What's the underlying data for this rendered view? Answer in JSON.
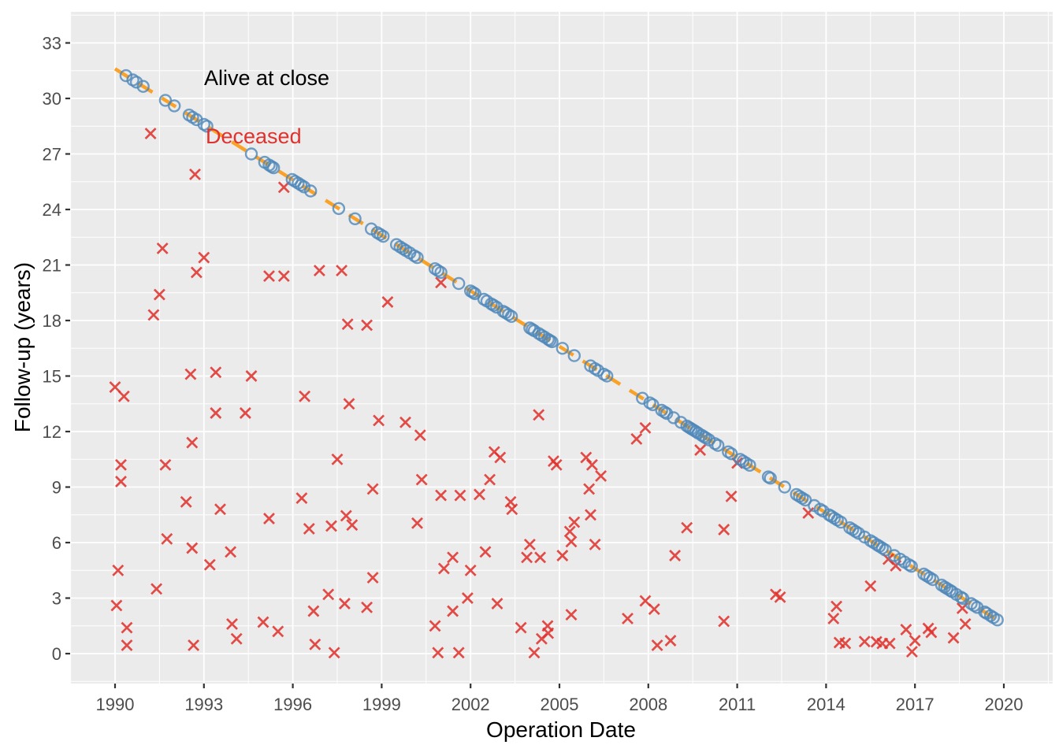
{
  "chart_data": {
    "type": "scatter",
    "title": "",
    "xlabel": "Operation Date",
    "ylabel": "Follow-up (years)",
    "legend_position": "none (in-plot text annotations)",
    "grid": "white major and minor gridlines on gray panel",
    "x_axis": {
      "ticks": [
        1990,
        1993,
        1996,
        1999,
        2002,
        2005,
        2008,
        2011,
        2014,
        2017,
        2020
      ],
      "range": [
        1988.5,
        2021.6
      ]
    },
    "y_axis": {
      "ticks": [
        0,
        3,
        6,
        9,
        12,
        15,
        18,
        21,
        24,
        27,
        30,
        33
      ],
      "range": [
        -1.6,
        34.7
      ]
    },
    "colors": {
      "alive": "#4D87B9",
      "deceased": "#E0312D",
      "trend": "#F9A227",
      "panel_bg": "#EBEBEB",
      "grid": "#FFFFFF",
      "tick_text": "#4D4D4D",
      "axis_title": "#000000"
    },
    "annotations": [
      {
        "text": "Alive at close",
        "color": "#000000",
        "x": 1993.0,
        "y": 31.1
      },
      {
        "text": "Deceased",
        "color": "#E0312D",
        "x": 1993.1,
        "y": 27.9
      }
    ],
    "trend_line": {
      "style": "dashed",
      "color": "#F9A227",
      "x": [
        1990.0,
        2019.85
      ],
      "y": [
        31.6,
        1.75
      ]
    },
    "series": [
      {
        "name": "Alive at close",
        "marker": "open-circle",
        "color": "#4D87B9",
        "points": [
          [
            1990.37,
            31.23
          ],
          [
            1990.6,
            31.0
          ],
          [
            1990.72,
            30.88
          ],
          [
            1990.95,
            30.65
          ],
          [
            1991.7,
            29.9
          ],
          [
            1992.0,
            29.6
          ],
          [
            1992.5,
            29.1
          ],
          [
            1992.62,
            28.98
          ],
          [
            1992.75,
            28.85
          ],
          [
            1993.0,
            28.6
          ],
          [
            1993.1,
            28.5
          ],
          [
            1994.6,
            27.0
          ],
          [
            1995.05,
            26.55
          ],
          [
            1995.2,
            26.4
          ],
          [
            1995.28,
            26.32
          ],
          [
            1995.35,
            26.25
          ],
          [
            1995.98,
            25.62
          ],
          [
            1996.08,
            25.52
          ],
          [
            1996.18,
            25.42
          ],
          [
            1996.28,
            25.32
          ],
          [
            1996.38,
            25.22
          ],
          [
            1996.6,
            25.0
          ],
          [
            1997.55,
            24.05
          ],
          [
            1998.1,
            23.5
          ],
          [
            1998.65,
            22.95
          ],
          [
            1998.85,
            22.75
          ],
          [
            1998.95,
            22.65
          ],
          [
            1999.05,
            22.55
          ],
          [
            1999.5,
            22.1
          ],
          [
            1999.62,
            21.98
          ],
          [
            1999.72,
            21.88
          ],
          [
            1999.82,
            21.78
          ],
          [
            1999.95,
            21.65
          ],
          [
            2000.1,
            21.5
          ],
          [
            2000.2,
            21.4
          ],
          [
            2000.8,
            20.8
          ],
          [
            2000.9,
            20.7
          ],
          [
            2001.0,
            20.6
          ],
          [
            2001.6,
            20.0
          ],
          [
            2002.0,
            19.6
          ],
          [
            2002.08,
            19.52
          ],
          [
            2002.15,
            19.45
          ],
          [
            2002.45,
            19.15
          ],
          [
            2002.55,
            19.05
          ],
          [
            2002.7,
            18.9
          ],
          [
            2002.78,
            18.82
          ],
          [
            2002.88,
            18.72
          ],
          [
            2003.1,
            18.5
          ],
          [
            2003.18,
            18.42
          ],
          [
            2003.28,
            18.32
          ],
          [
            2003.38,
            18.22
          ],
          [
            2004.0,
            17.6
          ],
          [
            2004.08,
            17.52
          ],
          [
            2004.15,
            17.45
          ],
          [
            2004.3,
            17.3
          ],
          [
            2004.4,
            17.2
          ],
          [
            2004.5,
            17.1
          ],
          [
            2004.62,
            16.98
          ],
          [
            2004.68,
            16.92
          ],
          [
            2004.75,
            16.85
          ],
          [
            2005.1,
            16.5
          ],
          [
            2005.5,
            16.1
          ],
          [
            2006.05,
            15.55
          ],
          [
            2006.2,
            15.4
          ],
          [
            2006.3,
            15.3
          ],
          [
            2006.5,
            15.1
          ],
          [
            2006.6,
            15.0
          ],
          [
            2007.8,
            13.8
          ],
          [
            2008.05,
            13.55
          ],
          [
            2008.15,
            13.45
          ],
          [
            2008.45,
            13.15
          ],
          [
            2008.55,
            13.05
          ],
          [
            2008.62,
            12.98
          ],
          [
            2008.85,
            12.75
          ],
          [
            2009.1,
            12.5
          ],
          [
            2009.3,
            12.3
          ],
          [
            2009.38,
            12.22
          ],
          [
            2009.45,
            12.15
          ],
          [
            2009.52,
            12.08
          ],
          [
            2009.6,
            12.0
          ],
          [
            2009.68,
            11.92
          ],
          [
            2009.8,
            11.8
          ],
          [
            2009.88,
            11.72
          ],
          [
            2009.95,
            11.65
          ],
          [
            2010.05,
            11.55
          ],
          [
            2010.25,
            11.35
          ],
          [
            2010.35,
            11.25
          ],
          [
            2010.7,
            10.9
          ],
          [
            2010.8,
            10.8
          ],
          [
            2011.1,
            10.5
          ],
          [
            2011.2,
            10.4
          ],
          [
            2011.3,
            10.3
          ],
          [
            2011.42,
            10.18
          ],
          [
            2012.05,
            9.55
          ],
          [
            2012.12,
            9.48
          ],
          [
            2012.6,
            9.0
          ],
          [
            2013.0,
            8.6
          ],
          [
            2013.1,
            8.5
          ],
          [
            2013.2,
            8.4
          ],
          [
            2013.3,
            8.3
          ],
          [
            2013.6,
            8.0
          ],
          [
            2013.8,
            7.8
          ],
          [
            2013.9,
            7.7
          ],
          [
            2014.1,
            7.5
          ],
          [
            2014.18,
            7.42
          ],
          [
            2014.28,
            7.32
          ],
          [
            2014.38,
            7.22
          ],
          [
            2014.5,
            7.1
          ],
          [
            2014.8,
            6.8
          ],
          [
            2014.9,
            6.7
          ],
          [
            2015.0,
            6.6
          ],
          [
            2015.1,
            6.5
          ],
          [
            2015.3,
            6.3
          ],
          [
            2015.5,
            6.1
          ],
          [
            2015.6,
            6.0
          ],
          [
            2015.72,
            5.88
          ],
          [
            2015.8,
            5.8
          ],
          [
            2015.9,
            5.7
          ],
          [
            2016.0,
            5.6
          ],
          [
            2016.3,
            5.3
          ],
          [
            2016.5,
            5.1
          ],
          [
            2016.65,
            4.95
          ],
          [
            2016.8,
            4.8
          ],
          [
            2016.88,
            4.72
          ],
          [
            2017.3,
            4.3
          ],
          [
            2017.4,
            4.2
          ],
          [
            2017.5,
            4.1
          ],
          [
            2017.6,
            4.0
          ],
          [
            2017.9,
            3.7
          ],
          [
            2018.0,
            3.6
          ],
          [
            2018.08,
            3.52
          ],
          [
            2018.18,
            3.42
          ],
          [
            2018.25,
            3.35
          ],
          [
            2018.4,
            3.2
          ],
          [
            2018.55,
            3.05
          ],
          [
            2018.62,
            2.98
          ],
          [
            2018.9,
            2.7
          ],
          [
            2019.0,
            2.6
          ],
          [
            2019.1,
            2.5
          ],
          [
            2019.35,
            2.25
          ],
          [
            2019.42,
            2.18
          ],
          [
            2019.55,
            2.05
          ],
          [
            2019.65,
            1.95
          ],
          [
            2019.78,
            1.82
          ]
        ]
      },
      {
        "name": "Deceased",
        "marker": "x-cross",
        "color": "#E0312D",
        "points": [
          [
            1990.0,
            14.4
          ],
          [
            1990.05,
            2.6
          ],
          [
            1990.1,
            4.5
          ],
          [
            1990.2,
            10.2
          ],
          [
            1990.2,
            9.3
          ],
          [
            1990.3,
            13.9
          ],
          [
            1990.4,
            1.4
          ],
          [
            1990.4,
            0.45
          ],
          [
            1991.2,
            28.1
          ],
          [
            1991.3,
            18.3
          ],
          [
            1991.4,
            3.5
          ],
          [
            1991.5,
            19.4
          ],
          [
            1991.6,
            21.9
          ],
          [
            1991.7,
            10.2
          ],
          [
            1991.75,
            6.2
          ],
          [
            1992.4,
            8.2
          ],
          [
            1992.55,
            15.1
          ],
          [
            1992.6,
            11.4
          ],
          [
            1992.6,
            5.7
          ],
          [
            1992.65,
            0.45
          ],
          [
            1992.7,
            25.9
          ],
          [
            1992.75,
            20.6
          ],
          [
            1993.0,
            21.4
          ],
          [
            1993.2,
            4.8
          ],
          [
            1993.4,
            15.2
          ],
          [
            1993.4,
            13.0
          ],
          [
            1993.55,
            7.8
          ],
          [
            1993.9,
            5.5
          ],
          [
            1993.95,
            1.6
          ],
          [
            1994.1,
            0.8
          ],
          [
            1994.4,
            13.0
          ],
          [
            1994.6,
            15.0
          ],
          [
            1995.0,
            1.7
          ],
          [
            1995.2,
            20.4
          ],
          [
            1995.2,
            7.3
          ],
          [
            1995.5,
            1.2
          ],
          [
            1995.7,
            25.2
          ],
          [
            1995.7,
            20.4
          ],
          [
            1996.3,
            8.4
          ],
          [
            1996.4,
            13.9
          ],
          [
            1996.55,
            6.75
          ],
          [
            1996.7,
            2.3
          ],
          [
            1996.75,
            0.5
          ],
          [
            1996.9,
            20.7
          ],
          [
            1997.2,
            3.2
          ],
          [
            1997.3,
            6.9
          ],
          [
            1997.4,
            0.05
          ],
          [
            1997.5,
            10.5
          ],
          [
            1997.65,
            20.7
          ],
          [
            1997.75,
            2.7
          ],
          [
            1997.8,
            7.45
          ],
          [
            1997.85,
            17.8
          ],
          [
            1997.9,
            13.5
          ],
          [
            1998.0,
            6.95
          ],
          [
            1998.5,
            17.75
          ],
          [
            1998.5,
            2.5
          ],
          [
            1998.7,
            8.9
          ],
          [
            1998.7,
            4.1
          ],
          [
            1998.9,
            12.6
          ],
          [
            1999.2,
            19.0
          ],
          [
            1999.8,
            12.5
          ],
          [
            2000.2,
            7.05
          ],
          [
            2000.3,
            11.8
          ],
          [
            2000.35,
            9.4
          ],
          [
            2000.8,
            1.5
          ],
          [
            2000.9,
            0.05
          ],
          [
            2001.0,
            8.55
          ],
          [
            2001.0,
            20.05
          ],
          [
            2001.1,
            4.6
          ],
          [
            2001.4,
            5.2
          ],
          [
            2001.4,
            2.3
          ],
          [
            2001.6,
            0.05
          ],
          [
            2001.65,
            8.55
          ],
          [
            2001.9,
            3.0
          ],
          [
            2002.0,
            4.5
          ],
          [
            2002.3,
            8.6
          ],
          [
            2002.5,
            5.5
          ],
          [
            2002.65,
            9.4
          ],
          [
            2002.8,
            10.9
          ],
          [
            2002.9,
            2.7
          ],
          [
            2003.0,
            10.6
          ],
          [
            2003.35,
            8.2
          ],
          [
            2003.4,
            7.8
          ],
          [
            2003.7,
            1.4
          ],
          [
            2003.9,
            5.2
          ],
          [
            2004.0,
            5.9
          ],
          [
            2004.15,
            0.05
          ],
          [
            2004.3,
            12.9
          ],
          [
            2004.35,
            5.2
          ],
          [
            2004.4,
            0.8
          ],
          [
            2004.6,
            1.5
          ],
          [
            2004.62,
            1.1
          ],
          [
            2004.8,
            10.4
          ],
          [
            2004.9,
            10.2
          ],
          [
            2005.1,
            5.3
          ],
          [
            2005.35,
            6.6
          ],
          [
            2005.4,
            6.05
          ],
          [
            2005.4,
            2.1
          ],
          [
            2005.5,
            7.1
          ],
          [
            2005.9,
            10.6
          ],
          [
            2006.0,
            8.9
          ],
          [
            2006.05,
            7.5
          ],
          [
            2006.1,
            10.2
          ],
          [
            2006.2,
            5.9
          ],
          [
            2006.4,
            9.6
          ],
          [
            2007.3,
            1.9
          ],
          [
            2007.6,
            11.6
          ],
          [
            2007.9,
            12.2
          ],
          [
            2007.9,
            2.85
          ],
          [
            2008.2,
            2.4
          ],
          [
            2008.3,
            0.45
          ],
          [
            2008.75,
            0.7
          ],
          [
            2008.9,
            5.3
          ],
          [
            2009.3,
            6.8
          ],
          [
            2009.75,
            11.0
          ],
          [
            2010.55,
            6.7
          ],
          [
            2010.55,
            1.75
          ],
          [
            2010.8,
            8.5
          ],
          [
            2011.0,
            10.3
          ],
          [
            2012.3,
            3.2
          ],
          [
            2012.45,
            3.05
          ],
          [
            2013.4,
            7.6
          ],
          [
            2014.25,
            1.9
          ],
          [
            2014.35,
            2.55
          ],
          [
            2014.45,
            0.6
          ],
          [
            2014.65,
            0.55
          ],
          [
            2015.3,
            0.65
          ],
          [
            2015.5,
            3.65
          ],
          [
            2015.7,
            0.64
          ],
          [
            2015.9,
            0.55
          ],
          [
            2016.1,
            5.1
          ],
          [
            2016.15,
            0.55
          ],
          [
            2016.35,
            4.75
          ],
          [
            2016.7,
            1.3
          ],
          [
            2016.9,
            0.1
          ],
          [
            2017.0,
            0.7
          ],
          [
            2017.45,
            1.36
          ],
          [
            2017.55,
            1.15
          ],
          [
            2018.3,
            0.85
          ],
          [
            2018.6,
            2.45
          ],
          [
            2018.7,
            1.6
          ]
        ]
      }
    ]
  }
}
